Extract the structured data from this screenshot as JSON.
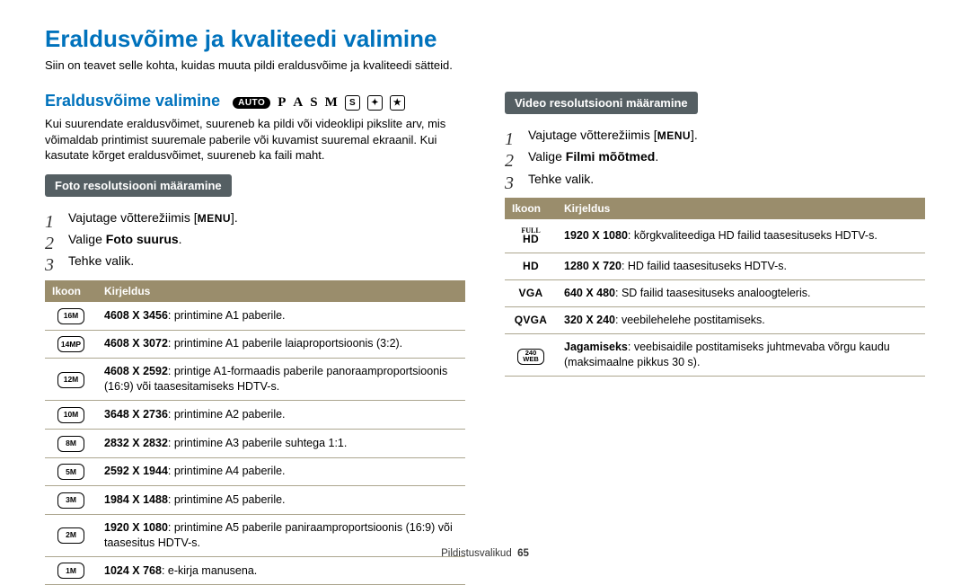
{
  "page_title": "Eraldusvõime ja kvaliteedi valimine",
  "page_intro": "Siin on teavet selle kohta, kuidas muuta pildi eraldusvõime ja kvaliteedi sätteid.",
  "left": {
    "section_title": "Eraldusvõime valimine",
    "mode_badges": {
      "auto": "AUTO",
      "letters": [
        "P",
        "A",
        "S",
        "M"
      ],
      "box_labels": [
        "S",
        "✦",
        "★"
      ]
    },
    "section_p": "Kui suurendate eraldusvõimet, suureneb ka pildi või videoklipi pikslite arv, mis võimaldab printimist suuremale paberile või kuvamist suuremal ekraanil. Kui kasutate kõrget eraldusvõimet, suureneb ka faili maht.",
    "pill": "Foto resolutsiooni määramine",
    "steps": [
      {
        "pre": "Vajutage võtterežiimis [",
        "menu": "MENU",
        "post": "]."
      },
      {
        "pre": "Valige ",
        "bold": "Foto suurus",
        "post": "."
      },
      {
        "pre": "Tehke valik.",
        "bold": "",
        "post": ""
      }
    ],
    "table": {
      "headers": [
        "Ikoon",
        "Kirjeldus"
      ],
      "rows": [
        {
          "icon": "16M",
          "bold": "4608 X 3456",
          "rest": ": printimine A1 paberile."
        },
        {
          "icon": "14MP",
          "bold": "4608 X 3072",
          "rest": ": printimine A1 paberile laiaproportsioonis (3:2)."
        },
        {
          "icon": "12M",
          "bold": "4608 X 2592",
          "rest": ": printige A1-formaadis paberile panoraamproportsioonis (16:9) või taasesitamiseks HDTV-s."
        },
        {
          "icon": "10M",
          "bold": "3648 X 2736",
          "rest": ": printimine A2 paberile."
        },
        {
          "icon": "8M",
          "bold": "2832 X 2832",
          "rest": ": printimine A3 paberile suhtega 1:1."
        },
        {
          "icon": "5M",
          "bold": "2592 X 1944",
          "rest": ": printimine A4 paberile."
        },
        {
          "icon": "3M",
          "bold": "1984 X 1488",
          "rest": ": printimine A5 paberile."
        },
        {
          "icon": "2M",
          "bold": "1920 X 1080",
          "rest": ": printimine A5 paberile paniraamproportsioonis (16:9) või taasesitus HDTV-s."
        },
        {
          "icon": "1M",
          "bold": "1024 X 768",
          "rest": ": e-kirja manusena."
        }
      ]
    }
  },
  "right": {
    "pill": "Video resolutsiooni määramine",
    "steps": [
      {
        "pre": "Vajutage võtterežiimis [",
        "menu": "MENU",
        "post": "]."
      },
      {
        "pre": "Valige ",
        "bold": "Filmi mõõtmed",
        "post": "."
      },
      {
        "pre": "Tehke valik.",
        "bold": "",
        "post": ""
      }
    ],
    "table": {
      "headers": [
        "Ikoon",
        "Kirjeldus"
      ],
      "rows": [
        {
          "icon": "FULL HD",
          "icon_style": "stack",
          "bold": "1920 X 1080",
          "rest": ": kõrgkvaliteediga HD failid taasesituseks HDTV-s."
        },
        {
          "icon": "HD",
          "icon_style": "plain",
          "bold": "1280 X 720",
          "rest": ": HD failid taasesituseks HDTV-s."
        },
        {
          "icon": "VGA",
          "icon_style": "plain",
          "bold": "640 X 480",
          "rest": ": SD failid taasesituseks analoogteleris."
        },
        {
          "icon": "QVGA",
          "icon_style": "plain",
          "bold": "320 X 240",
          "rest": ": veebilehelehe postitamiseks."
        },
        {
          "icon": "240 WEB",
          "icon_style": "box",
          "bold": "Jagamiseks",
          "rest": ": veebisaidile postitamiseks juhtmevaba võrgu kaudu (maksimaalne pikkus 30 s)."
        }
      ]
    }
  },
  "footer": {
    "label": "Pildistusvalikud",
    "page": "65"
  },
  "colors": {
    "accent": "#0072bc",
    "pill_bg": "#555f63",
    "th_bg": "#9a8d6c",
    "row_border": "#aca68f"
  }
}
